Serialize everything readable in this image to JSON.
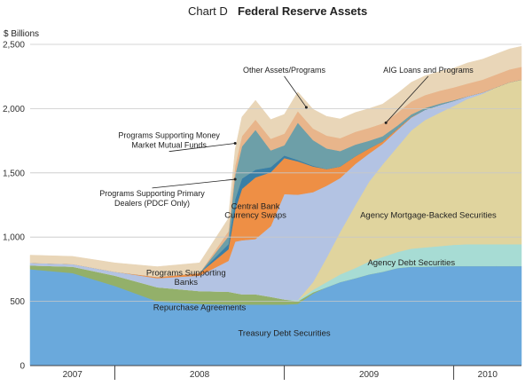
{
  "chart_data": {
    "type": "area",
    "stacked": true,
    "title_prefix": "Chart D",
    "title": "Federal Reserve Assets",
    "ylabel": "$ Billions",
    "xlabel": "",
    "ylim": [
      0,
      2500
    ],
    "yticks": [
      0,
      500,
      1000,
      1500,
      2000,
      2500
    ],
    "ytick_labels": [
      "0",
      "500",
      "1,000",
      "1,500",
      "2,000",
      "2,500"
    ],
    "x_range": [
      2007.5,
      2010.4
    ],
    "x_period_labels": [
      {
        "label": "2007",
        "from": 2007.5,
        "to": 2008.0
      },
      {
        "label": "2008",
        "from": 2008.0,
        "to": 2009.0
      },
      {
        "label": "2009",
        "from": 2009.0,
        "to": 2010.0
      },
      {
        "label": "2010",
        "from": 2010.0,
        "to": 2010.4
      }
    ],
    "grid": true,
    "legend": "none",
    "x": [
      2007.5,
      2007.75,
      2008.0,
      2008.25,
      2008.5,
      2008.67,
      2008.71,
      2008.75,
      2008.83,
      2008.92,
      2009.0,
      2009.08,
      2009.17,
      2009.25,
      2009.33,
      2009.42,
      2009.5,
      2009.58,
      2009.67,
      2009.75,
      2009.83,
      2009.92,
      2010.0,
      2010.08,
      2010.17,
      2010.25,
      2010.33,
      2010.4
    ],
    "series": [
      {
        "name": "Treasury Debt Securities",
        "color": "#6aa9dc",
        "values": [
          750,
          720,
          620,
          500,
          480,
          475,
          475,
          475,
          475,
          475,
          475,
          480,
          560,
          610,
          650,
          680,
          710,
          730,
          760,
          770,
          770,
          775,
          775,
          775,
          775,
          775,
          775,
          775
        ]
      },
      {
        "name": "Repurchase Agreements",
        "color": "#93b06a",
        "values": [
          30,
          50,
          80,
          110,
          100,
          100,
          90,
          80,
          80,
          60,
          40,
          20,
          10,
          0,
          0,
          0,
          0,
          0,
          0,
          0,
          0,
          0,
          0,
          0,
          0,
          0,
          0,
          0
        ]
      },
      {
        "name": "Agency Debt Securities",
        "color": "#a7dcd4",
        "values": [
          0,
          0,
          0,
          0,
          0,
          0,
          0,
          0,
          0,
          0,
          0,
          10,
          20,
          40,
          60,
          80,
          100,
          115,
          125,
          140,
          150,
          155,
          165,
          170,
          170,
          170,
          170,
          170
        ]
      },
      {
        "name": "Agency Mortgage-Backed Securities",
        "color": "#e0d49e",
        "values": [
          0,
          0,
          0,
          0,
          0,
          0,
          0,
          0,
          0,
          0,
          0,
          0,
          60,
          190,
          330,
          490,
          620,
          720,
          820,
          920,
          990,
          1040,
          1080,
          1130,
          1170,
          1220,
          1260,
          1280
        ]
      },
      {
        "name": "Programs Supporting Banks",
        "color": "#b3c3e3",
        "values": [
          20,
          20,
          30,
          70,
          120,
          240,
          400,
          420,
          430,
          550,
          820,
          820,
          700,
          560,
          420,
          320,
          220,
          160,
          130,
          100,
          80,
          60,
          40,
          20,
          10,
          0,
          0,
          0
        ]
      },
      {
        "name": "Central Bank Currency Swaps",
        "color": "#ee8f45",
        "values": [
          0,
          0,
          0,
          10,
          20,
          90,
          250,
          400,
          480,
          420,
          280,
          260,
          200,
          130,
          90,
          60,
          40,
          20,
          10,
          5,
          0,
          0,
          0,
          0,
          0,
          0,
          0,
          0
        ]
      },
      {
        "name": "Programs Supporting Primary Dealers (PDCF Only)",
        "color": "#3a7fa6",
        "values": [
          0,
          0,
          0,
          0,
          0,
          40,
          80,
          80,
          60,
          40,
          20,
          10,
          5,
          0,
          0,
          0,
          0,
          0,
          0,
          0,
          0,
          0,
          0,
          0,
          0,
          0,
          0,
          0
        ]
      },
      {
        "name": "Programs Supporting Money Market Mutual Funds",
        "color": "#6d9fa8",
        "values": [
          0,
          0,
          0,
          0,
          0,
          60,
          190,
          250,
          310,
          130,
          80,
          290,
          200,
          160,
          120,
          90,
          60,
          40,
          25,
          20,
          15,
          10,
          5,
          0,
          0,
          0,
          0,
          0
        ]
      },
      {
        "name": "AIG Loans and Programs",
        "color": "#e8b58b",
        "values": [
          0,
          0,
          0,
          0,
          0,
          40,
          70,
          80,
          80,
          90,
          90,
          90,
          90,
          100,
          100,
          100,
          100,
          100,
          100,
          100,
          100,
          100,
          100,
          100,
          100,
          100,
          100,
          100
        ]
      },
      {
        "name": "Other Assets/Programs",
        "color": "#e9d6b8",
        "values": [
          60,
          60,
          70,
          80,
          80,
          100,
          130,
          150,
          150,
          150,
          150,
          150,
          150,
          150,
          150,
          150,
          150,
          150,
          150,
          150,
          150,
          150,
          150,
          160,
          160,
          160,
          160,
          160
        ]
      }
    ],
    "area_labels": [
      {
        "text": "Treasury Debt Securities",
        "series": 0,
        "at_x": 2009.0,
        "at_y": 230
      },
      {
        "text": "Repurchase Agreements",
        "series": 1,
        "at_x": 2008.5,
        "at_y": 430
      },
      {
        "text": "Agency Debt Securities",
        "series": 2,
        "at_x": 2009.75,
        "at_y": 780
      },
      {
        "text": "Agency Mortgage-Backed Securities",
        "series": 3,
        "at_x": 2009.85,
        "at_y": 1150
      },
      {
        "text": "Programs Supporting",
        "series": 4,
        "at_x": 2008.42,
        "at_y": 700
      },
      {
        "text": "Banks",
        "series": 4,
        "at_x": 2008.42,
        "at_y": 630
      },
      {
        "text": "Central Bank",
        "series": 5,
        "at_x": 2008.83,
        "at_y": 1220
      },
      {
        "text": "Currency Swaps",
        "series": 5,
        "at_x": 2008.83,
        "at_y": 1150
      }
    ],
    "annotations": [
      {
        "lines": [
          "Other Assets/Programs"
        ],
        "at_x": 2009.0,
        "at_y": 2280,
        "arrow_to_x": 2009.13,
        "arrow_to_y": 2010
      },
      {
        "lines": [
          "AIG Loans and Programs"
        ],
        "at_x": 2009.85,
        "at_y": 2280,
        "arrow_to_x": 2009.6,
        "arrow_to_y": 1890
      },
      {
        "lines": [
          "Programs Supporting Money",
          "Market Mutual Funds"
        ],
        "at_x": 2008.32,
        "at_y": 1770,
        "arrow_to_x": 2008.71,
        "arrow_to_y": 1730
      },
      {
        "lines": [
          "Programs Supporting Primary",
          "Dealers (PDCF Only)"
        ],
        "at_x": 2008.22,
        "at_y": 1320,
        "arrow_to_x": 2008.71,
        "arrow_to_y": 1450
      }
    ]
  }
}
